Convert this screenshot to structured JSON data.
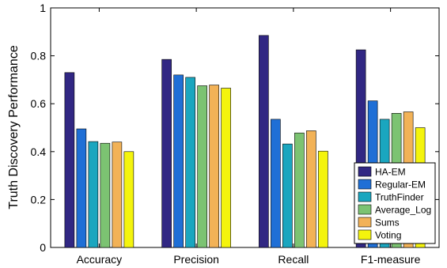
{
  "chart_data": {
    "type": "bar",
    "categories": [
      "Accuracy",
      "Precision",
      "Recall",
      "F1-measure"
    ],
    "series": [
      {
        "name": "HA-EM",
        "color": "#312783",
        "values": [
          0.73,
          0.785,
          0.885,
          0.825
        ]
      },
      {
        "name": "Regular-EM",
        "color": "#1f6fd6",
        "values": [
          0.495,
          0.72,
          0.535,
          0.612
        ]
      },
      {
        "name": "TruthFinder",
        "color": "#1aa6bf",
        "values": [
          0.442,
          0.71,
          0.432,
          0.535
        ]
      },
      {
        "name": "Average_Log",
        "color": "#7cc372",
        "values": [
          0.435,
          0.675,
          0.478,
          0.56
        ]
      },
      {
        "name": "Sums",
        "color": "#f2b257",
        "values": [
          0.44,
          0.678,
          0.487,
          0.566
        ]
      },
      {
        "name": "Voting",
        "color": "#f4f40d",
        "values": [
          0.4,
          0.665,
          0.402,
          0.5
        ]
      }
    ],
    "ylabel": "Truth Discovery Performance",
    "ylim": [
      0,
      1
    ],
    "yticks": [
      "0",
      "0.2",
      "0.4",
      "0.6",
      "0.8",
      "1"
    ],
    "legend_position": "bottom-right",
    "grid": false
  }
}
